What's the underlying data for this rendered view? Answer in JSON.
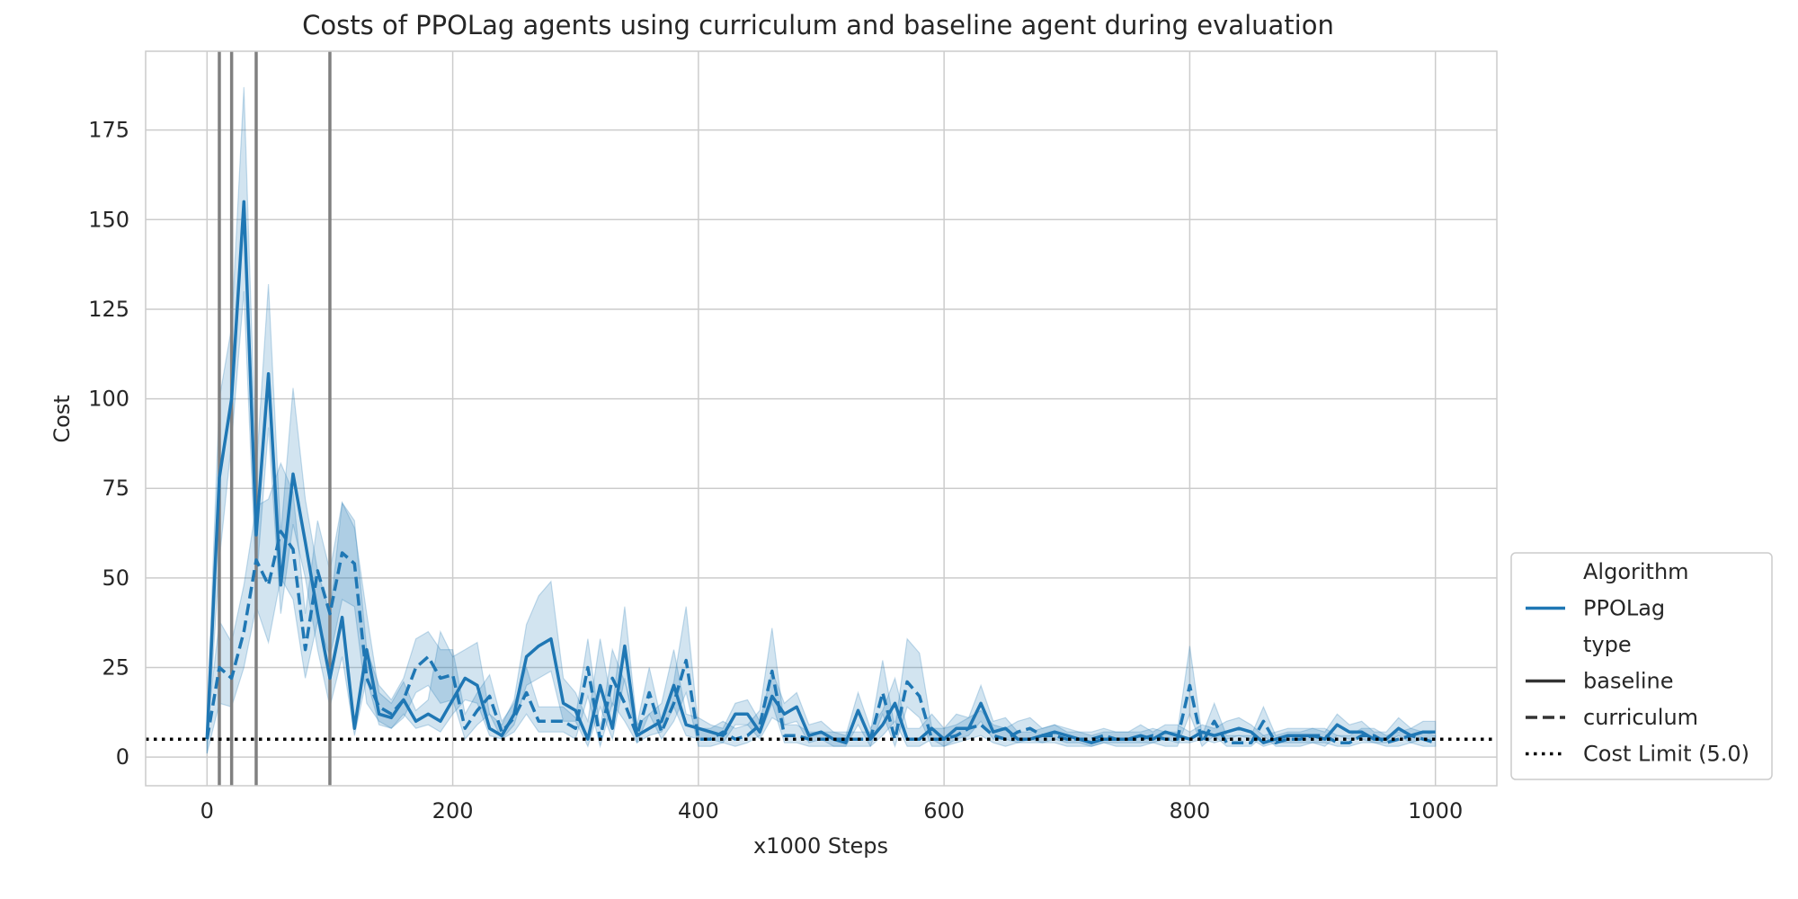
{
  "chart_data": {
    "type": "line",
    "title": "Costs of PPOLag agents using curriculum and baseline agent during evaluation",
    "xlabel": "x1000 Steps",
    "ylabel": "Cost",
    "xlim": [
      -50,
      1050
    ],
    "ylim": [
      -8,
      197
    ],
    "x_ticks": [
      0,
      200,
      400,
      600,
      800,
      1000
    ],
    "y_ticks": [
      0,
      25,
      50,
      75,
      100,
      125,
      150,
      175
    ],
    "grid": true,
    "legend_placement": "bottom-right outside",
    "legend": [
      {
        "label": "Algorithm",
        "kind": "header"
      },
      {
        "label": "PPOLag",
        "kind": "color"
      },
      {
        "label": "type",
        "kind": "header"
      },
      {
        "label": "baseline",
        "kind": "solid"
      },
      {
        "label": "curriculum",
        "kind": "dashed"
      },
      {
        "label": "Cost Limit (5.0)",
        "kind": "dotted"
      }
    ],
    "colors": {
      "series": "#1f77b4",
      "band": "#1f77b4",
      "vlines": "#808080",
      "limit": "#000000",
      "grid": "#cccccc"
    },
    "cost_limit": 5.0,
    "vertical_lines_x": [
      10,
      20,
      40,
      100
    ],
    "x": [
      0,
      10,
      20,
      30,
      40,
      50,
      60,
      70,
      80,
      90,
      100,
      110,
      120,
      130,
      140,
      150,
      160,
      170,
      180,
      190,
      200,
      210,
      220,
      230,
      240,
      250,
      260,
      270,
      280,
      290,
      300,
      310,
      320,
      330,
      340,
      350,
      360,
      370,
      380,
      390,
      400,
      410,
      420,
      430,
      440,
      450,
      460,
      470,
      480,
      490,
      500,
      510,
      520,
      530,
      540,
      550,
      560,
      570,
      580,
      590,
      600,
      610,
      620,
      630,
      640,
      650,
      660,
      670,
      680,
      690,
      700,
      710,
      720,
      730,
      740,
      750,
      760,
      770,
      780,
      790,
      800,
      810,
      820,
      830,
      840,
      850,
      860,
      870,
      880,
      890,
      900,
      910,
      920,
      930,
      940,
      950,
      960,
      970,
      980,
      990,
      1000
    ],
    "series": [
      {
        "name": "baseline",
        "style": "solid",
        "values": [
          5,
          78,
          100,
          155,
          62,
          107,
          48,
          79,
          60,
          40,
          22,
          39,
          8,
          30,
          12,
          11,
          16,
          10,
          12,
          10,
          16,
          22,
          20,
          8,
          6,
          12,
          28,
          31,
          33,
          15,
          13,
          5,
          20,
          8,
          31,
          6,
          8,
          10,
          20,
          9,
          8,
          7,
          6,
          12,
          12,
          7,
          17,
          12,
          14,
          6,
          7,
          5,
          4,
          13,
          5,
          9,
          15,
          5,
          5,
          8,
          5,
          8,
          8,
          15,
          7,
          8,
          5,
          5,
          6,
          7,
          6,
          5,
          4,
          5,
          5,
          5,
          6,
          5,
          7,
          6,
          5,
          7,
          6,
          7,
          8,
          7,
          4,
          5,
          6,
          6,
          6,
          5,
          9,
          7,
          7,
          5,
          5,
          8,
          6,
          7,
          7
        ],
        "band_low": [
          1,
          55,
          88,
          130,
          48,
          92,
          40,
          65,
          50,
          30,
          14,
          28,
          6,
          22,
          9,
          8,
          12,
          8,
          9,
          7,
          12,
          16,
          15,
          6,
          5,
          9,
          20,
          22,
          24,
          10,
          10,
          3,
          14,
          5,
          22,
          4,
          6,
          7,
          14,
          6,
          5,
          5,
          4,
          9,
          9,
          5,
          11,
          9,
          10,
          4,
          5,
          3,
          3,
          9,
          3,
          6,
          10,
          3,
          3,
          5,
          3,
          5,
          6,
          10,
          5,
          5,
          4,
          4,
          4,
          5,
          4,
          4,
          3,
          4,
          4,
          4,
          4,
          4,
          5,
          4,
          4,
          5,
          4,
          5,
          6,
          5,
          3,
          4,
          4,
          4,
          4,
          3,
          6,
          5,
          5,
          4,
          4,
          6,
          4,
          5,
          5
        ],
        "band_high": [
          10,
          100,
          120,
          187,
          80,
          132,
          62,
          103,
          72,
          52,
          40,
          71,
          64,
          40,
          18,
          15,
          21,
          13,
          16,
          35,
          28,
          30,
          32,
          12,
          9,
          16,
          37,
          45,
          49,
          22,
          18,
          10,
          33,
          14,
          42,
          9,
          12,
          15,
          30,
          12,
          11,
          9,
          8,
          15,
          16,
          10,
          24,
          15,
          18,
          9,
          10,
          7,
          6,
          18,
          8,
          13,
          22,
          8,
          8,
          12,
          8,
          12,
          11,
          20,
          10,
          11,
          7,
          7,
          8,
          9,
          8,
          7,
          6,
          7,
          7,
          7,
          9,
          7,
          9,
          9,
          7,
          9,
          8,
          10,
          11,
          9,
          6,
          7,
          8,
          8,
          8,
          7,
          12,
          9,
          10,
          7,
          7,
          11,
          8,
          10,
          10
        ]
      },
      {
        "name": "curriculum",
        "style": "dashed",
        "values": [
          5,
          25,
          22,
          35,
          55,
          48,
          63,
          58,
          30,
          52,
          40,
          57,
          54,
          22,
          14,
          12,
          16,
          25,
          28,
          22,
          23,
          8,
          13,
          17,
          7,
          11,
          18,
          10,
          10,
          10,
          8,
          25,
          5,
          22,
          15,
          6,
          18,
          7,
          15,
          27,
          5,
          5,
          7,
          5,
          6,
          9,
          24,
          6,
          6,
          5,
          5,
          5,
          5,
          5,
          5,
          18,
          5,
          21,
          17,
          5,
          5,
          6,
          8,
          9,
          6,
          5,
          7,
          8,
          6,
          6,
          5,
          5,
          5,
          6,
          5,
          5,
          5,
          6,
          5,
          5,
          20,
          4,
          10,
          4,
          4,
          4,
          10,
          4,
          5,
          5,
          6,
          6,
          4,
          4,
          6,
          6,
          4,
          5,
          6,
          5,
          4
        ],
        "band_low": [
          1,
          15,
          14,
          25,
          42,
          32,
          50,
          44,
          22,
          38,
          28,
          44,
          42,
          15,
          10,
          8,
          11,
          18,
          20,
          15,
          16,
          5,
          9,
          12,
          5,
          7,
          12,
          7,
          7,
          7,
          5,
          17,
          3,
          15,
          10,
          4,
          12,
          5,
          10,
          18,
          3,
          3,
          4,
          3,
          4,
          6,
          15,
          4,
          4,
          3,
          3,
          3,
          3,
          3,
          3,
          12,
          3,
          14,
          11,
          3,
          3,
          4,
          5,
          6,
          4,
          3,
          4,
          5,
          4,
          4,
          3,
          3,
          3,
          4,
          3,
          3,
          3,
          4,
          3,
          3,
          12,
          3,
          6,
          3,
          3,
          3,
          6,
          3,
          3,
          3,
          4,
          4,
          3,
          3,
          4,
          4,
          3,
          3,
          4,
          3,
          3
        ],
        "band_high": [
          8,
          38,
          32,
          48,
          70,
          72,
          82,
          74,
          40,
          66,
          52,
          71,
          66,
          30,
          20,
          16,
          22,
          33,
          35,
          30,
          30,
          12,
          18,
          23,
          10,
          15,
          25,
          14,
          14,
          14,
          11,
          33,
          8,
          30,
          21,
          9,
          25,
          10,
          21,
          42,
          8,
          8,
          10,
          8,
          9,
          13,
          36,
          9,
          9,
          7,
          7,
          7,
          7,
          7,
          7,
          27,
          8,
          33,
          29,
          8,
          8,
          9,
          11,
          13,
          9,
          8,
          10,
          11,
          8,
          9,
          7,
          7,
          7,
          8,
          7,
          7,
          7,
          8,
          7,
          7,
          31,
          6,
          15,
          6,
          6,
          6,
          14,
          6,
          7,
          7,
          8,
          8,
          6,
          6,
          8,
          8,
          6,
          7,
          8,
          7,
          6
        ]
      }
    ]
  }
}
